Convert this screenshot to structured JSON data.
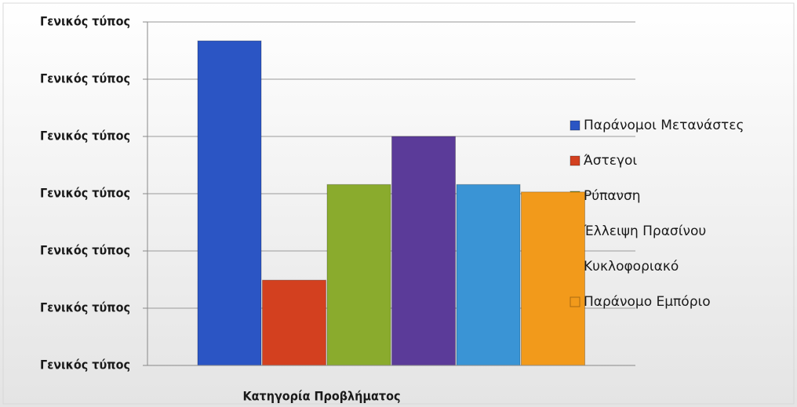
{
  "chart_data": {
    "type": "bar",
    "xlabel": "Κατηγορία Προβλήματος",
    "series": [
      {
        "name": "Παράνομοι Μετανάστες",
        "color": "#2b55c4",
        "values": [
          5.67
        ]
      },
      {
        "name": "Άστεγοι",
        "color": "#d3401f",
        "values": [
          1.49
        ]
      },
      {
        "name": "Ρύπανση",
        "color": "#8aab2d",
        "values": [
          3.16
        ]
      },
      {
        "name": "Έλλειψη Πρασίνου",
        "color": "#5b3b99",
        "values": [
          4.0
        ]
      },
      {
        "name": "Κυκλοφοριακό",
        "color": "#3a94d5",
        "values": [
          3.16
        ]
      },
      {
        "name": "Παράνομο Εμπόριο",
        "color": "#f29a1b",
        "values": [
          3.03
        ]
      }
    ],
    "ylim": [
      0,
      6
    ],
    "yticks": [
      {
        "value": 0,
        "label": "Γενικός τύπος"
      },
      {
        "value": 1,
        "label": "Γενικός τύπος"
      },
      {
        "value": 2,
        "label": "Γενικός τύπος"
      },
      {
        "value": 3,
        "label": "Γενικός τύπος"
      },
      {
        "value": 4,
        "label": "Γενικός τύπος"
      },
      {
        "value": 5,
        "label": "Γενικός τύπος"
      },
      {
        "value": 6,
        "label": "Γενικός τύπος"
      }
    ],
    "grid": true,
    "legend": "right"
  }
}
